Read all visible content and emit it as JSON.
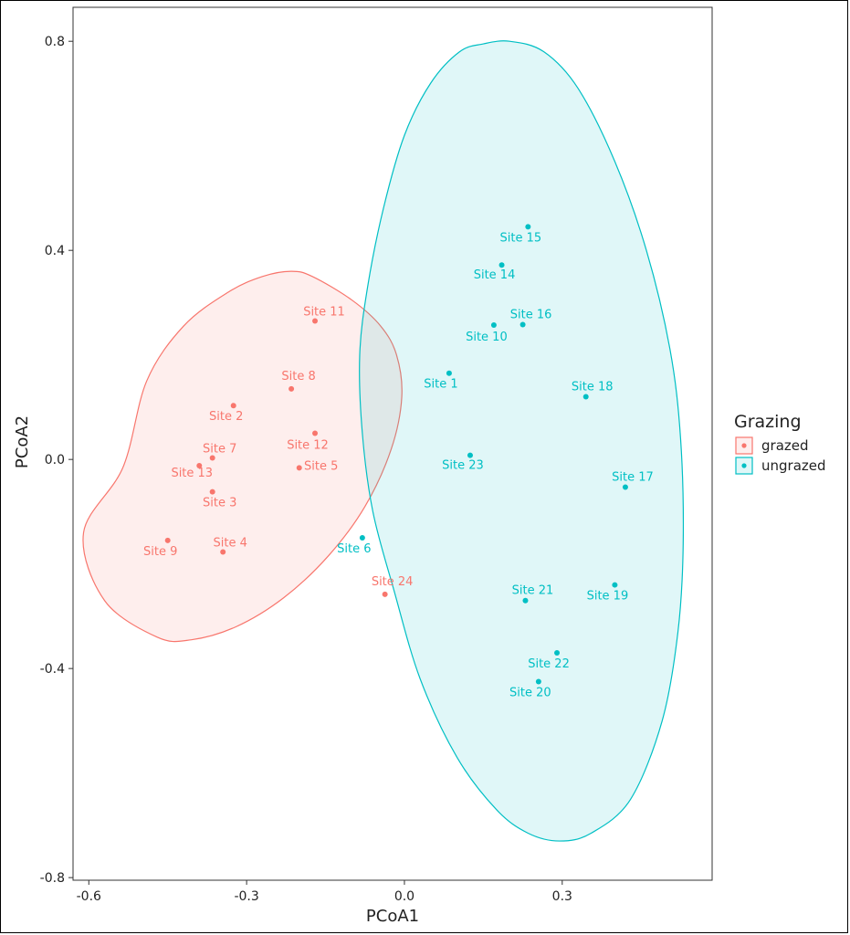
{
  "chart_data": {
    "type": "scatter",
    "title": "",
    "xlabel": "PCoA1",
    "ylabel": "PCoA2",
    "xlim": [
      -0.63,
      0.585
    ],
    "ylim": [
      -0.805,
      0.865
    ],
    "x_ticks": [
      -0.6,
      -0.3,
      0.0,
      0.3
    ],
    "x_tick_labels": [
      "-0.6",
      "-0.3",
      "0.0",
      "0.3"
    ],
    "y_ticks": [
      0.8,
      0.4,
      0.0,
      -0.4,
      -0.8
    ],
    "y_tick_labels": [
      "0.8",
      "0.4",
      "0.0",
      "-0.4",
      "-0.8"
    ],
    "grid": false,
    "legend": {
      "title": "Grazing",
      "position": "right",
      "entries": [
        "grazed",
        "ungrazed"
      ]
    },
    "colors": {
      "grazed": "#F8766D",
      "ungrazed": "#00BFC4"
    },
    "series": [
      {
        "name": "grazed",
        "points": [
          {
            "label": "Site 11",
            "x": -0.17,
            "y": 0.265
          },
          {
            "label": "Site 8",
            "x": -0.215,
            "y": 0.135
          },
          {
            "label": "Site 2",
            "x": -0.325,
            "y": 0.103
          },
          {
            "label": "Site 12",
            "x": -0.17,
            "y": 0.05
          },
          {
            "label": "Site 7",
            "x": -0.365,
            "y": 0.003
          },
          {
            "label": "Site 13",
            "x": -0.39,
            "y": -0.012
          },
          {
            "label": "Site 5",
            "x": -0.2,
            "y": -0.016
          },
          {
            "label": "Site 3",
            "x": -0.365,
            "y": -0.062
          },
          {
            "label": "Site 9",
            "x": -0.45,
            "y": -0.155
          },
          {
            "label": "Site 4",
            "x": -0.345,
            "y": -0.177
          },
          {
            "label": "Site 24",
            "x": -0.037,
            "y": -0.258
          }
        ],
        "ellipse": {
          "polygon": [
            [
              -0.535,
              -0.015
            ],
            [
              -0.61,
              -0.14
            ],
            [
              -0.57,
              -0.27
            ],
            [
              -0.47,
              -0.34
            ],
            [
              -0.405,
              -0.345
            ],
            [
              -0.32,
              -0.32
            ],
            [
              -0.23,
              -0.265
            ],
            [
              -0.145,
              -0.185
            ],
            [
              -0.075,
              -0.09
            ],
            [
              -0.025,
              0.02
            ],
            [
              -0.005,
              0.12
            ],
            [
              -0.015,
              0.2
            ],
            [
              -0.045,
              0.255
            ],
            [
              -0.1,
              0.305
            ],
            [
              -0.175,
              0.35
            ],
            [
              -0.215,
              0.36
            ],
            [
              -0.27,
              0.35
            ],
            [
              -0.335,
              0.32
            ],
            [
              -0.42,
              0.255
            ],
            [
              -0.49,
              0.15
            ]
          ]
        }
      },
      {
        "name": "ungrazed",
        "points": [
          {
            "label": "Site 15",
            "x": 0.235,
            "y": 0.445
          },
          {
            "label": "Site 14",
            "x": 0.185,
            "y": 0.372
          },
          {
            "label": "Site 16",
            "x": 0.225,
            "y": 0.258
          },
          {
            "label": "Site 10",
            "x": 0.17,
            "y": 0.257
          },
          {
            "label": "Site 1",
            "x": 0.085,
            "y": 0.165
          },
          {
            "label": "Site 18",
            "x": 0.345,
            "y": 0.12
          },
          {
            "label": "Site 23",
            "x": 0.125,
            "y": 0.008
          },
          {
            "label": "Site 17",
            "x": 0.42,
            "y": -0.053
          },
          {
            "label": "Site 6",
            "x": -0.08,
            "y": -0.15
          },
          {
            "label": "Site 19",
            "x": 0.4,
            "y": -0.24
          },
          {
            "label": "Site 21",
            "x": 0.23,
            "y": -0.27
          },
          {
            "label": "Site 22",
            "x": 0.29,
            "y": -0.37
          },
          {
            "label": "Site 20",
            "x": 0.255,
            "y": -0.425
          }
        ],
        "ellipse": {
          "polygon": [
            [
              0.15,
              0.795
            ],
            [
              0.105,
              0.78
            ],
            [
              0.05,
              0.72
            ],
            [
              0.0,
              0.62
            ],
            [
              -0.04,
              0.48
            ],
            [
              -0.07,
              0.33
            ],
            [
              -0.085,
              0.2
            ],
            [
              -0.08,
              0.05
            ],
            [
              -0.06,
              -0.1
            ],
            [
              -0.02,
              -0.25
            ],
            [
              0.03,
              -0.42
            ],
            [
              0.1,
              -0.57
            ],
            [
              0.175,
              -0.67
            ],
            [
              0.235,
              -0.715
            ],
            [
              0.295,
              -0.73
            ],
            [
              0.355,
              -0.715
            ],
            [
              0.43,
              -0.65
            ],
            [
              0.49,
              -0.5
            ],
            [
              0.52,
              -0.33
            ],
            [
              0.53,
              -0.16
            ],
            [
              0.525,
              0.04
            ],
            [
              0.505,
              0.21
            ],
            [
              0.46,
              0.4
            ],
            [
              0.4,
              0.57
            ],
            [
              0.33,
              0.71
            ],
            [
              0.265,
              0.78
            ],
            [
              0.2,
              0.8
            ]
          ]
        }
      }
    ]
  }
}
